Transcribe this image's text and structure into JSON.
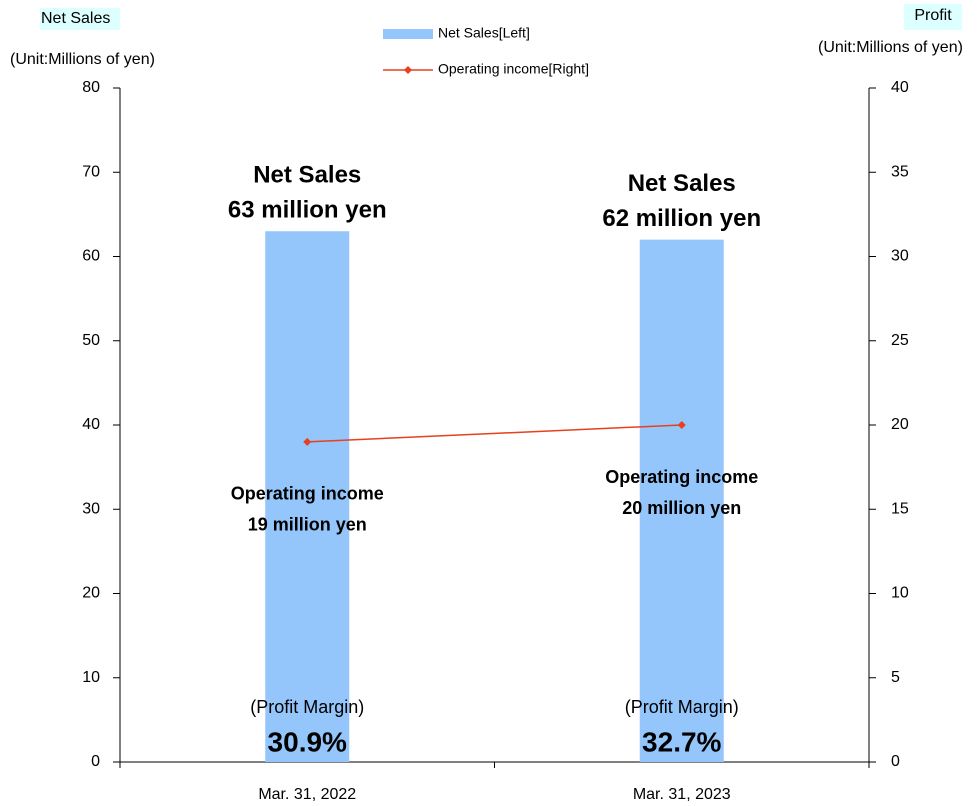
{
  "chart_data": {
    "type": "combo",
    "categories": [
      "Mar. 31, 2022",
      "Mar. 31, 2023"
    ],
    "series": [
      {
        "name": "Net Sales[Left]",
        "type": "bar",
        "color": "#94c5fb",
        "values": [
          63,
          62
        ],
        "label_header": "Net Sales",
        "value_labels": [
          "63 million yen",
          "62 million yen"
        ]
      },
      {
        "name": "Operating income[Right]",
        "type": "line",
        "axis": "y2",
        "color": "#e8401c",
        "values": [
          19,
          20
        ],
        "label_header": "Operating income",
        "value_labels": [
          "19 million yen",
          "20 million yen"
        ]
      }
    ],
    "profit_margin": {
      "label": "(Profit Margin)",
      "values": [
        30.9,
        32.7
      ],
      "value_labels": [
        "30.9%",
        "32.7%"
      ]
    },
    "ylabel": "Net Sales",
    "ylabel_unit": "(Unit:Millions of yen)",
    "y2label": "Profit",
    "y2label_unit": "(Unit:Millions of yen)",
    "ylim": [
      0,
      80
    ],
    "yticks": [
      0,
      10,
      20,
      30,
      40,
      50,
      60,
      70,
      80
    ],
    "y2lim": [
      0,
      40
    ],
    "y2ticks": [
      0,
      5,
      10,
      15,
      20,
      25,
      30,
      35,
      40
    ],
    "grid": false,
    "legend": "top"
  }
}
